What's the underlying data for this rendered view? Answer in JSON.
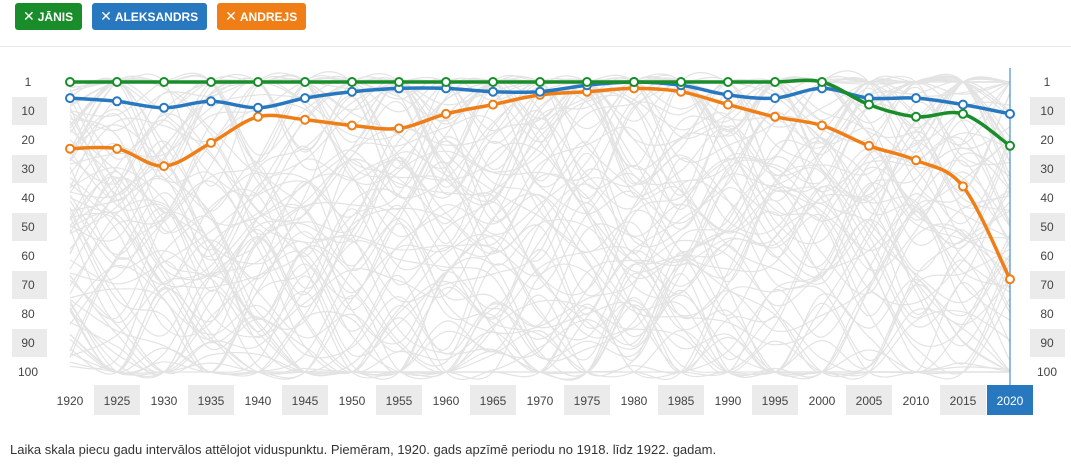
{
  "tags": [
    {
      "label": "JĀNIS",
      "color": "#1a8d2b",
      "icon": "close-icon"
    },
    {
      "label": "ALEKSANDRS",
      "color": "#2878c0",
      "icon": "close-icon"
    },
    {
      "label": "ANDREJS",
      "color": "#f07e16",
      "icon": "close-icon"
    }
  ],
  "note": "Laika skala piecu gadu intervālos attēlojot viduspunktu. Piemēram, 1920. gads apzīmē periodu no 1918. līdz 1922. gadam.",
  "chart_data": {
    "type": "line",
    "x": [
      1920,
      1925,
      1930,
      1935,
      1940,
      1945,
      1950,
      1955,
      1960,
      1965,
      1970,
      1975,
      1980,
      1985,
      1990,
      1995,
      2000,
      2005,
      2010,
      2015,
      2020
    ],
    "x_tick_labels": [
      "1920",
      "1925",
      "1930",
      "1935",
      "1940",
      "1945",
      "1950",
      "1955",
      "1960",
      "1965",
      "1970",
      "1975",
      "1980",
      "1985",
      "1990",
      "1995",
      "2000",
      "2005",
      "2010",
      "2015",
      "2020"
    ],
    "y_tick_labels": [
      "1",
      "10",
      "20",
      "30",
      "40",
      "50",
      "60",
      "70",
      "80",
      "90",
      "100"
    ],
    "ylim": [
      1,
      100
    ],
    "y_inverted": true,
    "selected_x": "2020",
    "series": [
      {
        "name": "JĀNIS",
        "color": "#1a8d2b",
        "values": [
          1,
          1,
          1,
          1,
          1,
          1,
          1,
          1,
          1,
          1,
          1,
          1,
          1,
          1,
          1,
          1,
          1,
          8,
          12,
          11,
          22
        ]
      },
      {
        "name": "ALEKSANDRS",
        "color": "#2878c0",
        "values": [
          6,
          7,
          9,
          7,
          9,
          6,
          4,
          3,
          3,
          4,
          4,
          2,
          1,
          2,
          5,
          6,
          3,
          6,
          6,
          8,
          11
        ]
      },
      {
        "name": "ANDREJS",
        "color": "#f07e16",
        "values": [
          23,
          23,
          29,
          21,
          12,
          13,
          15,
          16,
          11,
          8,
          5,
          4,
          3,
          4,
          8,
          12,
          15,
          22,
          27,
          36,
          68
        ]
      }
    ]
  }
}
